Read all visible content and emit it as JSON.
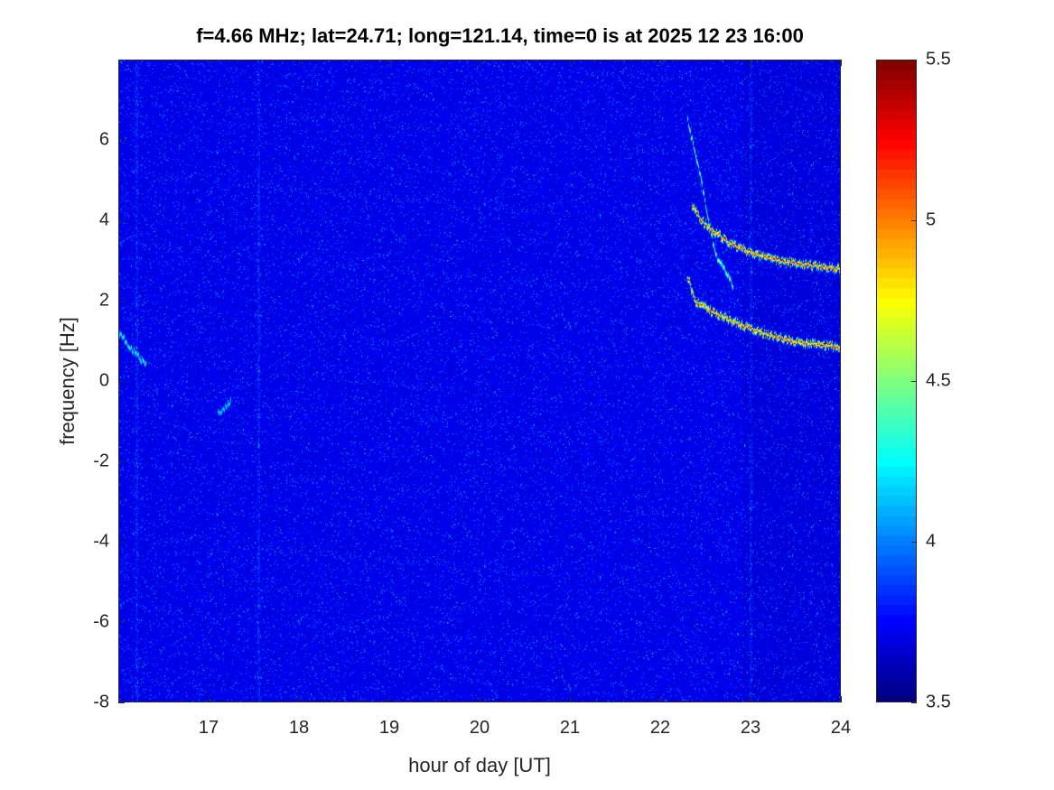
{
  "chart_data": {
    "type": "heatmap",
    "title": "f=4.66 MHz;  lat=24.71; long=121.14, time=0 is at 2025 12 23 16:00",
    "xlabel": "hour of day [UT]",
    "ylabel": "frequency [Hz]",
    "xlim": [
      16,
      24
    ],
    "ylim": [
      -8,
      8
    ],
    "xticks": [
      17,
      18,
      19,
      20,
      21,
      22,
      23,
      24
    ],
    "yticks": [
      -8,
      -6,
      -4,
      -2,
      0,
      2,
      4,
      6
    ],
    "colorbar": {
      "range": [
        3.5,
        5.5
      ],
      "ticks": [
        3.5,
        4,
        4.5,
        5,
        5.5
      ],
      "colormap": "jet"
    },
    "background_level": 3.65,
    "vertical_streaks_hour": [
      16.2,
      17.55,
      23.0
    ],
    "traces": [
      {
        "name": "upper trace",
        "points": [
          [
            22.35,
            4.4
          ],
          [
            22.45,
            4.0
          ],
          [
            22.6,
            3.7
          ],
          [
            22.8,
            3.4
          ],
          [
            23.0,
            3.2
          ],
          [
            23.3,
            3.0
          ],
          [
            23.6,
            2.9
          ],
          [
            24.0,
            2.8
          ]
        ],
        "level": 5.4
      },
      {
        "name": "lower trace",
        "points": [
          [
            22.3,
            2.6
          ],
          [
            22.38,
            2.0
          ],
          [
            22.6,
            1.7
          ],
          [
            22.8,
            1.5
          ],
          [
            23.0,
            1.3
          ],
          [
            23.3,
            1.1
          ],
          [
            23.6,
            0.95
          ],
          [
            24.0,
            0.85
          ]
        ],
        "level": 5.4
      },
      {
        "name": "faint dispersed traces",
        "points": [
          [
            22.3,
            6.5
          ],
          [
            22.45,
            5.0
          ],
          [
            22.6,
            3.2
          ],
          [
            22.8,
            2.4
          ]
        ],
        "level": 4.6
      },
      {
        "name": "early feature",
        "points": [
          [
            16.0,
            1.2
          ],
          [
            16.15,
            0.8
          ],
          [
            16.3,
            0.4
          ]
        ],
        "level": 4.4
      },
      {
        "name": "feature near 17.2",
        "points": [
          [
            17.1,
            -0.8
          ],
          [
            17.25,
            -0.5
          ]
        ],
        "level": 4.3
      }
    ]
  }
}
